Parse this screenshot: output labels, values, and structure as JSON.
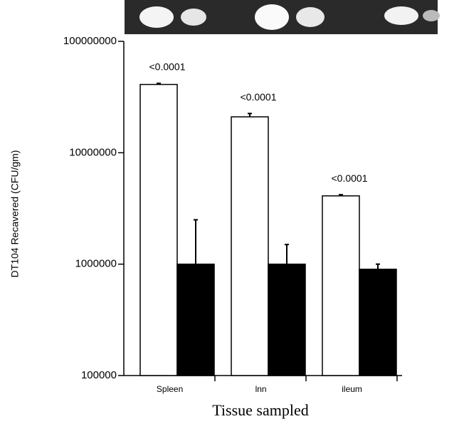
{
  "chart_data": {
    "type": "bar",
    "y_label": "DT104 Recavered (CFU/gm)",
    "x_label": "Tissue sampled",
    "categories": [
      "Spleen",
      "lnn",
      "ileum"
    ],
    "annotations": [
      "<0.0001",
      "<0.0001",
      "<0.0001"
    ],
    "series": [
      {
        "color": "#ffffff",
        "values": [
          41000000,
          21000000,
          4100000
        ],
        "errors": [
          1000000,
          1500000,
          100000
        ]
      },
      {
        "color": "#000000",
        "values": [
          1000000,
          1000000,
          900000
        ],
        "errors": [
          1500000,
          500000,
          100000
        ]
      }
    ],
    "ylim": [
      100000,
      100000000
    ],
    "yticks": [
      100000,
      1000000,
      10000000,
      100000000
    ],
    "log_y": true
  }
}
